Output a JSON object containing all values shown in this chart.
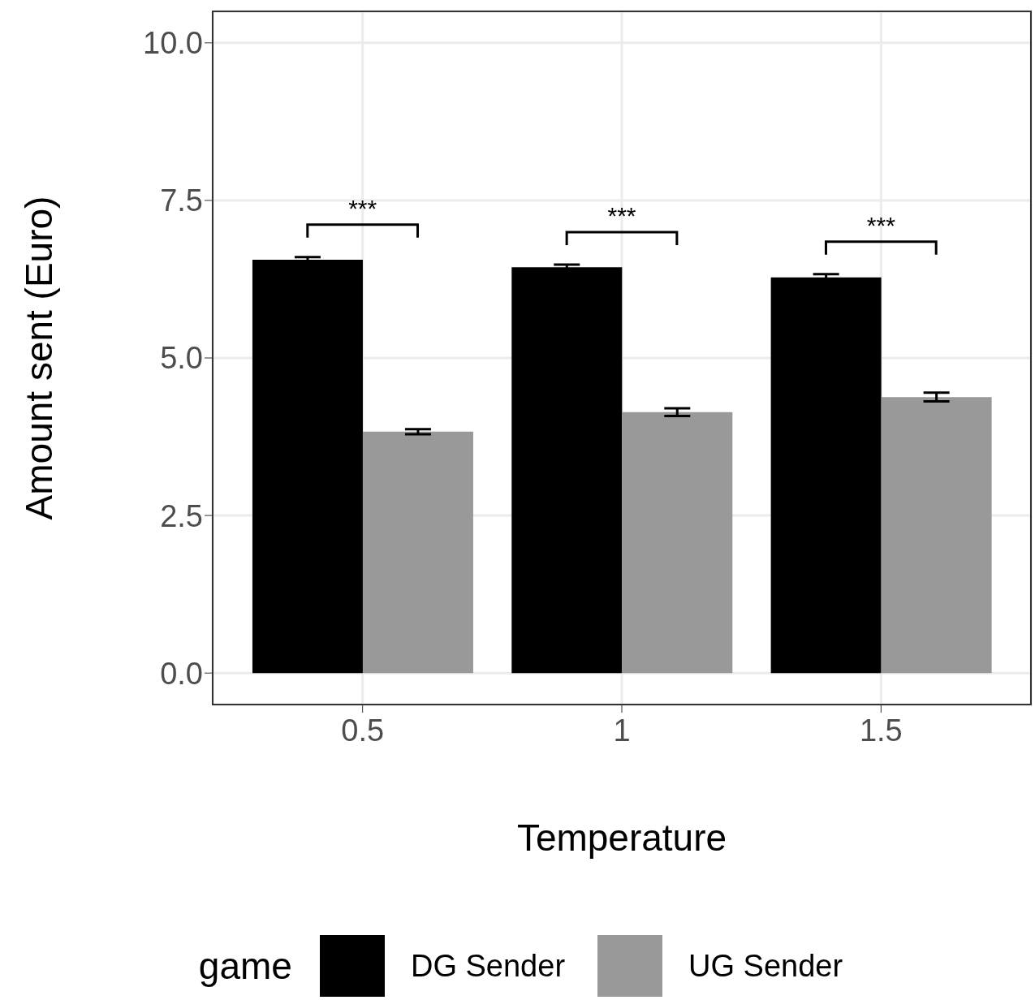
{
  "chart_data": {
    "type": "bar",
    "xlabel": "Temperature",
    "ylabel": "Amount sent (Euro)",
    "legend_title": "game",
    "categories": [
      "0.5",
      "1",
      "1.5"
    ],
    "series": [
      {
        "name": "DG Sender",
        "color": "#000000",
        "values": [
          6.56,
          6.44,
          6.28
        ],
        "errors": [
          0.04,
          0.04,
          0.05
        ]
      },
      {
        "name": "UG Sender",
        "color": "#999999",
        "values": [
          3.83,
          4.14,
          4.38
        ],
        "errors": [
          0.04,
          0.06,
          0.07
        ]
      }
    ],
    "ylim": [
      -0.5,
      10.5
    ],
    "yticks": [
      {
        "value": 0,
        "label": "0.0"
      },
      {
        "value": 2.5,
        "label": "2.5"
      },
      {
        "value": 5,
        "label": "5.0"
      },
      {
        "value": 7.5,
        "label": "7.5"
      },
      {
        "value": 10,
        "label": "10.0"
      }
    ],
    "grid": true,
    "legend": "bottom",
    "annotations": [
      "***",
      "***",
      "***"
    ]
  }
}
